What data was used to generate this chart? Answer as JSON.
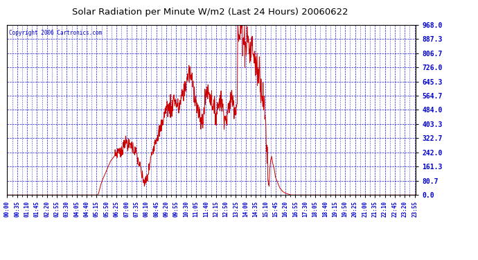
{
  "title": "Solar Radiation per Minute W/m2 (Last 24 Hours) 20060622",
  "copyright_text": "Copyright 2006 Cartronics.com",
  "line_color": "#cc0000",
  "background_color": "#ffffff",
  "grid_color": "#0000cc",
  "tick_label_color": "#0000cc",
  "title_color": "#000000",
  "yticks": [
    0.0,
    80.7,
    161.3,
    242.0,
    322.7,
    403.3,
    484.0,
    564.7,
    645.3,
    726.0,
    806.7,
    887.3,
    968.0
  ],
  "ymax": 968.0,
  "ymin": 0.0,
  "xtick_minutes": [
    0,
    35,
    70,
    105,
    140,
    175,
    210,
    245,
    280,
    315,
    350,
    385,
    420,
    455,
    490,
    525,
    560,
    595,
    630,
    665,
    700,
    735,
    770,
    805,
    840,
    875,
    910,
    945,
    980,
    1015,
    1050,
    1085,
    1120,
    1155,
    1190,
    1225,
    1260,
    1295,
    1330,
    1365,
    1400,
    1435
  ],
  "xtick_labels": [
    "00:00",
    "00:35",
    "01:10",
    "01:45",
    "02:20",
    "02:55",
    "03:30",
    "04:05",
    "04:40",
    "05:15",
    "05:50",
    "06:25",
    "07:00",
    "07:35",
    "08:10",
    "08:45",
    "09:20",
    "09:55",
    "10:30",
    "11:05",
    "11:40",
    "12:15",
    "12:50",
    "13:25",
    "14:00",
    "14:35",
    "15:10",
    "15:45",
    "16:20",
    "16:55",
    "17:30",
    "18:05",
    "18:40",
    "19:15",
    "19:50",
    "20:25",
    "21:00",
    "21:35",
    "22:10",
    "22:45",
    "23:20",
    "23:55"
  ],
  "key_points": [
    [
      0,
      0
    ],
    [
      318,
      0
    ],
    [
      322,
      10
    ],
    [
      328,
      50
    ],
    [
      335,
      85
    ],
    [
      345,
      120
    ],
    [
      355,
      160
    ],
    [
      365,
      195
    ],
    [
      375,
      215
    ],
    [
      385,
      240
    ],
    [
      395,
      260
    ],
    [
      402,
      230
    ],
    [
      408,
      280
    ],
    [
      415,
      310
    ],
    [
      422,
      295
    ],
    [
      428,
      275
    ],
    [
      435,
      295
    ],
    [
      442,
      270
    ],
    [
      448,
      250
    ],
    [
      455,
      240
    ],
    [
      460,
      200
    ],
    [
      465,
      175
    ],
    [
      470,
      150
    ],
    [
      475,
      100
    ],
    [
      480,
      85
    ],
    [
      485,
      70
    ],
    [
      490,
      80
    ],
    [
      495,
      110
    ],
    [
      500,
      150
    ],
    [
      505,
      200
    ],
    [
      510,
      240
    ],
    [
      520,
      300
    ],
    [
      530,
      340
    ],
    [
      540,
      380
    ],
    [
      550,
      430
    ],
    [
      558,
      490
    ],
    [
      565,
      500
    ],
    [
      570,
      480
    ],
    [
      575,
      510
    ],
    [
      578,
      475
    ],
    [
      582,
      520
    ],
    [
      588,
      550
    ],
    [
      592,
      530
    ],
    [
      598,
      510
    ],
    [
      602,
      490
    ],
    [
      608,
      510
    ],
    [
      615,
      560
    ],
    [
      620,
      590
    ],
    [
      625,
      600
    ],
    [
      630,
      640
    ],
    [
      635,
      660
    ],
    [
      640,
      700
    ],
    [
      645,
      680
    ],
    [
      650,
      660
    ],
    [
      655,
      620
    ],
    [
      660,
      580
    ],
    [
      665,
      530
    ],
    [
      670,
      490
    ],
    [
      675,
      450
    ],
    [
      680,
      430
    ],
    [
      685,
      410
    ],
    [
      690,
      430
    ],
    [
      695,
      500
    ],
    [
      700,
      580
    ],
    [
      705,
      600
    ],
    [
      710,
      580
    ],
    [
      715,
      560
    ],
    [
      720,
      540
    ],
    [
      725,
      510
    ],
    [
      730,
      480
    ],
    [
      735,
      460
    ],
    [
      740,
      490
    ],
    [
      745,
      520
    ],
    [
      750,
      550
    ],
    [
      755,
      530
    ],
    [
      758,
      500
    ],
    [
      762,
      480
    ],
    [
      766,
      450
    ],
    [
      770,
      420
    ],
    [
      775,
      450
    ],
    [
      780,
      490
    ],
    [
      785,
      540
    ],
    [
      790,
      560
    ],
    [
      795,
      540
    ],
    [
      800,
      510
    ],
    [
      803,
      480
    ],
    [
      807,
      510
    ],
    [
      810,
      540
    ],
    [
      812,
      968
    ],
    [
      814,
      910
    ],
    [
      817,
      870
    ],
    [
      820,
      920
    ],
    [
      823,
      960
    ],
    [
      825,
      968
    ],
    [
      828,
      940
    ],
    [
      832,
      900
    ],
    [
      836,
      870
    ],
    [
      840,
      850
    ],
    [
      843,
      870
    ],
    [
      846,
      920
    ],
    [
      848,
      900
    ],
    [
      850,
      860
    ],
    [
      853,
      820
    ],
    [
      855,
      800
    ],
    [
      857,
      820
    ],
    [
      860,
      840
    ],
    [
      862,
      860
    ],
    [
      865,
      840
    ],
    [
      867,
      810
    ],
    [
      870,
      780
    ],
    [
      873,
      760
    ],
    [
      876,
      730
    ],
    [
      878,
      750
    ],
    [
      880,
      730
    ],
    [
      882,
      700
    ],
    [
      884,
      680
    ],
    [
      886,
      700
    ],
    [
      888,
      720
    ],
    [
      890,
      700
    ],
    [
      892,
      650
    ],
    [
      894,
      580
    ],
    [
      896,
      610
    ],
    [
      899,
      580
    ],
    [
      902,
      540
    ],
    [
      905,
      490
    ],
    [
      908,
      440
    ],
    [
      911,
      380
    ],
    [
      913,
      310
    ],
    [
      915,
      240
    ],
    [
      917,
      170
    ],
    [
      919,
      100
    ],
    [
      922,
      50
    ],
    [
      925,
      150
    ],
    [
      928,
      200
    ],
    [
      931,
      220
    ],
    [
      935,
      180
    ],
    [
      940,
      150
    ],
    [
      945,
      100
    ],
    [
      950,
      80
    ],
    [
      955,
      60
    ],
    [
      960,
      40
    ],
    [
      970,
      20
    ],
    [
      980,
      10
    ],
    [
      990,
      5
    ],
    [
      1000,
      0
    ],
    [
      1439,
      0
    ]
  ]
}
